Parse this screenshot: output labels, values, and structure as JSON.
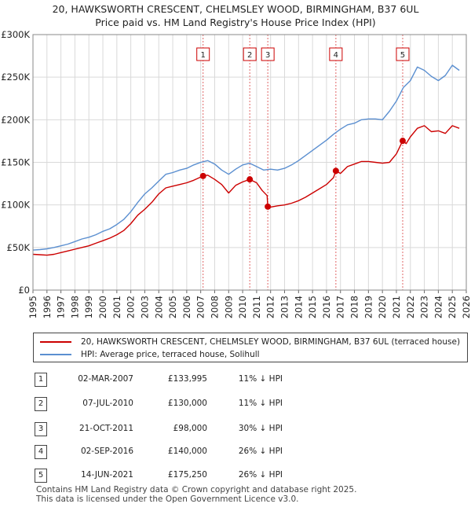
{
  "chart_data": {
    "type": "line",
    "title": "20, HAWKSWORTH CRESCENT, CHELMSLEY WOOD, BIRMINGHAM, B37 6UL",
    "subtitle": "Price paid vs. HM Land Registry's House Price Index (HPI)",
    "xlim": [
      1995,
      2026
    ],
    "ylim": [
      0,
      300000
    ],
    "x_ticks": [
      1995,
      1996,
      1997,
      1998,
      1999,
      2000,
      2001,
      2002,
      2003,
      2004,
      2005,
      2006,
      2007,
      2008,
      2009,
      2010,
      2011,
      2012,
      2013,
      2014,
      2015,
      2016,
      2017,
      2018,
      2019,
      2020,
      2021,
      2022,
      2023,
      2024,
      2025,
      2026
    ],
    "y_ticks": [
      {
        "value": 0,
        "label": "£0"
      },
      {
        "value": 50000,
        "label": "£50K"
      },
      {
        "value": 100000,
        "label": "£100K"
      },
      {
        "value": 150000,
        "label": "£150K"
      },
      {
        "value": 200000,
        "label": "£200K"
      },
      {
        "value": 250000,
        "label": "£250K"
      },
      {
        "value": 300000,
        "label": "£300K"
      }
    ],
    "grid": true,
    "series": [
      {
        "name": "20, HAWKSWORTH CRESCENT, CHELMSLEY WOOD, BIRMINGHAM, B37 6UL (terraced house)",
        "color": "#cc0000",
        "x": [
          1995.0,
          1995.5,
          1996.0,
          1996.5,
          1997.0,
          1997.5,
          1998.0,
          1998.5,
          1999.0,
          1999.5,
          2000.0,
          2000.5,
          2001.0,
          2001.5,
          2002.0,
          2002.5,
          2003.0,
          2003.5,
          2004.0,
          2004.5,
          2005.0,
          2005.5,
          2006.0,
          2006.5,
          2007.17,
          2007.5,
          2008.0,
          2008.5,
          2009.0,
          2009.5,
          2010.0,
          2010.51,
          2011.0,
          2011.4,
          2011.75,
          2011.8,
          2012.0,
          2012.5,
          2013.0,
          2013.5,
          2014.0,
          2014.5,
          2015.0,
          2015.5,
          2016.0,
          2016.5,
          2016.67,
          2017.0,
          2017.5,
          2018.0,
          2018.5,
          2019.0,
          2019.5,
          2020.0,
          2020.5,
          2021.0,
          2021.45,
          2021.7,
          2022.0,
          2022.5,
          2023.0,
          2023.5,
          2024.0,
          2024.5,
          2025.0,
          2025.5
        ],
        "y": [
          42000,
          41500,
          41000,
          42000,
          44000,
          46000,
          48000,
          50000,
          52000,
          55000,
          58000,
          61000,
          65000,
          70000,
          78000,
          88000,
          95000,
          103000,
          113000,
          120000,
          122000,
          124000,
          126000,
          129000,
          133995,
          135000,
          130000,
          124000,
          114000,
          123000,
          127000,
          130000,
          126000,
          117000,
          111000,
          98000,
          97500,
          99000,
          100000,
          102000,
          105000,
          109000,
          114000,
          119000,
          124000,
          132000,
          140000,
          137000,
          145000,
          148000,
          151000,
          151000,
          150000,
          149000,
          150000,
          160000,
          175250,
          172000,
          180000,
          190000,
          193000,
          186000,
          187000,
          184000,
          193000,
          190000
        ]
      },
      {
        "name": "HPI: Average price, terraced house, Solihull",
        "color": "#5b8fd0",
        "x": [
          1995.0,
          1995.5,
          1996.0,
          1996.5,
          1997.0,
          1997.5,
          1998.0,
          1998.5,
          1999.0,
          1999.5,
          2000.0,
          2000.5,
          2001.0,
          2001.5,
          2002.0,
          2002.5,
          2003.0,
          2003.5,
          2004.0,
          2004.5,
          2005.0,
          2005.5,
          2006.0,
          2006.5,
          2007.0,
          2007.5,
          2008.0,
          2008.5,
          2009.0,
          2009.5,
          2010.0,
          2010.5,
          2011.0,
          2011.5,
          2012.0,
          2012.5,
          2013.0,
          2013.5,
          2014.0,
          2014.5,
          2015.0,
          2015.5,
          2016.0,
          2016.5,
          2017.0,
          2017.5,
          2018.0,
          2018.5,
          2019.0,
          2019.5,
          2020.0,
          2020.5,
          2021.0,
          2021.5,
          2022.0,
          2022.5,
          2023.0,
          2023.5,
          2024.0,
          2024.5,
          2025.0,
          2025.5
        ],
        "y": [
          47000,
          47500,
          48500,
          50000,
          52000,
          54000,
          57000,
          60000,
          62000,
          65000,
          69000,
          72000,
          77000,
          83000,
          92000,
          103000,
          113000,
          120000,
          128000,
          136000,
          138000,
          141000,
          143000,
          147000,
          150000,
          152000,
          148000,
          141000,
          136000,
          142000,
          147000,
          149000,
          145000,
          141000,
          142000,
          141000,
          143000,
          147000,
          152000,
          158000,
          164000,
          170000,
          176000,
          183000,
          189000,
          194000,
          196000,
          200000,
          201000,
          201000,
          200000,
          210000,
          222000,
          238000,
          246000,
          262000,
          258000,
          251000,
          246000,
          252000,
          264000,
          258000
        ]
      }
    ],
    "markers": [
      {
        "label": "1",
        "x": 2007.17,
        "y": 133995
      },
      {
        "label": "2",
        "x": 2010.51,
        "y": 130000
      },
      {
        "label": "3",
        "x": 2011.8,
        "y": 98000
      },
      {
        "label": "4",
        "x": 2016.67,
        "y": 140000
      },
      {
        "label": "5",
        "x": 2021.45,
        "y": 175250
      }
    ]
  },
  "legend": {
    "items": [
      {
        "label": "20, HAWKSWORTH CRESCENT, CHELMSLEY WOOD, BIRMINGHAM, B37 6UL (terraced house)",
        "color": "#cc0000"
      },
      {
        "label": "HPI: Average price, terraced house, Solihull",
        "color": "#5b8fd0"
      }
    ]
  },
  "transactions": [
    {
      "num": "1",
      "date": "02-MAR-2007",
      "price": "£133,995",
      "hpi": "11% ↓ HPI"
    },
    {
      "num": "2",
      "date": "07-JUL-2010",
      "price": "£130,000",
      "hpi": "11% ↓ HPI"
    },
    {
      "num": "3",
      "date": "21-OCT-2011",
      "price": "£98,000",
      "hpi": "30% ↓ HPI"
    },
    {
      "num": "4",
      "date": "02-SEP-2016",
      "price": "£140,000",
      "hpi": "26% ↓ HPI"
    },
    {
      "num": "5",
      "date": "14-JUN-2021",
      "price": "£175,250",
      "hpi": "26% ↓ HPI"
    }
  ],
  "footer": {
    "line1": "Contains HM Land Registry data © Crown copyright and database right 2025.",
    "line2": "This data is licensed under the Open Government Licence v3.0."
  }
}
